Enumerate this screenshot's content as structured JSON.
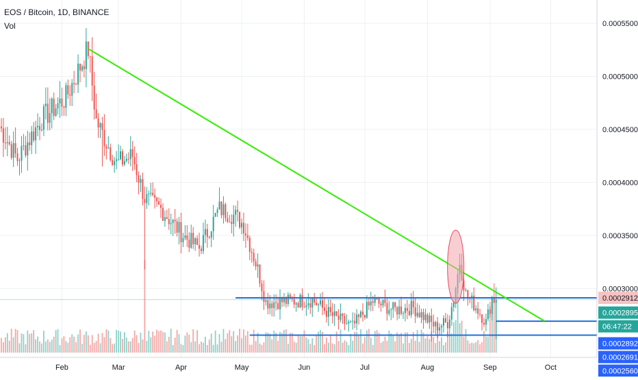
{
  "header": {
    "symbol": "EOS / Bitcoin, 1D, BINANCE",
    "volume_label": "Vol"
  },
  "colors": {
    "up": "#26a69a",
    "down": "#ef5350",
    "up_volume": "#8ed1c8",
    "down_volume": "#f5a6a6",
    "trendline": "#33ee00",
    "support_lines": "#1e6fd9",
    "highlight_ellipse": "#f4a6ae",
    "grid": "#eef0f3"
  },
  "price_tags": [
    {
      "value": "0.0002912",
      "background": "#f6c2c2",
      "text_color": "#131722"
    },
    {
      "value": "0.0002895",
      "background": "#26a69a",
      "text_color": "#ffffff"
    },
    {
      "value": "06:47:22",
      "background": "#26a69a",
      "text_color": "#ffffff"
    },
    {
      "value": "0.0002892",
      "background": "#2962ff",
      "text_color": "#ffffff"
    },
    {
      "value": "0.0002691",
      "background": "#2962ff",
      "text_color": "#ffffff"
    },
    {
      "value": "0.0002560",
      "background": "#2962ff",
      "text_color": "#ffffff"
    }
  ],
  "chart_data": {
    "type": "candlestick",
    "title": "EOS / Bitcoin, 1D, BINANCE",
    "y_axis": {
      "ticks": [
        "0.0003000",
        "0.0003500",
        "0.0004000",
        "0.0004500",
        "0.0005000",
        "0.0005500"
      ],
      "range": [
        0.000235,
        0.000572
      ]
    },
    "x_axis": {
      "ticks": [
        "Feb",
        "Mar",
        "Apr",
        "May",
        "Jun",
        "Jul",
        "Aug",
        "Sep",
        "Oct"
      ]
    },
    "trendline": {
      "from": {
        "date": "Feb 14",
        "price": 0.000526
      },
      "to": {
        "date": "Sep 28",
        "price": 0.0002692
      }
    },
    "support_lines": [
      {
        "from": "Apr 28",
        "to": "Oct 31",
        "price": 0.0002912
      },
      {
        "from": "Sep 4",
        "to": "Oct 31",
        "price": 0.0002691
      },
      {
        "from": "May 5",
        "to": "Oct 31",
        "price": 0.000256
      }
    ],
    "highlight": {
      "date": "Aug 15",
      "price_low": 0.000286,
      "price_high": 0.000355
    },
    "ohlc_keypoints": [
      {
        "date": "Jan 1",
        "close": 0.000453
      },
      {
        "date": "Jan 10",
        "close": 0.000422
      },
      {
        "date": "Jan 22",
        "close": 0.00046
      },
      {
        "date": "Feb 3",
        "close": 0.00048
      },
      {
        "date": "Feb 14",
        "close": 0.000526
      },
      {
        "date": "Feb 18",
        "close": 0.000458
      },
      {
        "date": "Feb 28",
        "close": 0.000418
      },
      {
        "date": "Mar 8",
        "close": 0.000425
      },
      {
        "date": "Mar 14",
        "close": 0.000385
      },
      {
        "date": "Mar 22",
        "close": 0.000375
      },
      {
        "date": "Apr 2",
        "close": 0.00035
      },
      {
        "date": "Apr 10",
        "close": 0.000338
      },
      {
        "date": "Apr 20",
        "close": 0.000375
      },
      {
        "date": "Apr 28",
        "close": 0.000368
      },
      {
        "date": "May 2",
        "close": 0.00036
      },
      {
        "date": "May 9",
        "close": 0.000318
      },
      {
        "date": "May 13",
        "close": 0.000287
      },
      {
        "date": "May 25",
        "close": 0.000288
      },
      {
        "date": "Jun 5",
        "close": 0.000289
      },
      {
        "date": "Jun 15",
        "close": 0.000274
      },
      {
        "date": "Jun 25",
        "close": 0.000264
      },
      {
        "date": "Jul 5",
        "close": 0.000288
      },
      {
        "date": "Jul 15",
        "close": 0.00028
      },
      {
        "date": "Jul 25",
        "close": 0.000282
      },
      {
        "date": "Aug 5",
        "close": 0.000264
      },
      {
        "date": "Aug 11",
        "close": 0.000268
      },
      {
        "date": "Aug 14",
        "close": 0.00029
      },
      {
        "date": "Aug 17",
        "close": 0.000325
      },
      {
        "date": "Aug 20",
        "close": 0.000295
      },
      {
        "date": "Aug 26",
        "close": 0.00028
      },
      {
        "date": "Aug 30",
        "close": 0.000268
      },
      {
        "date": "Sep 2",
        "close": 0.00029
      },
      {
        "date": "Sep 4",
        "close": 0.0002895
      }
    ],
    "volume_spikes": [
      {
        "date": "Mar 14",
        "relative": 1.0
      },
      {
        "date": "Aug 16",
        "relative": 0.7
      },
      {
        "date": "Sep 3",
        "relative": 0.75
      }
    ],
    "legend": "none",
    "grid": true
  }
}
